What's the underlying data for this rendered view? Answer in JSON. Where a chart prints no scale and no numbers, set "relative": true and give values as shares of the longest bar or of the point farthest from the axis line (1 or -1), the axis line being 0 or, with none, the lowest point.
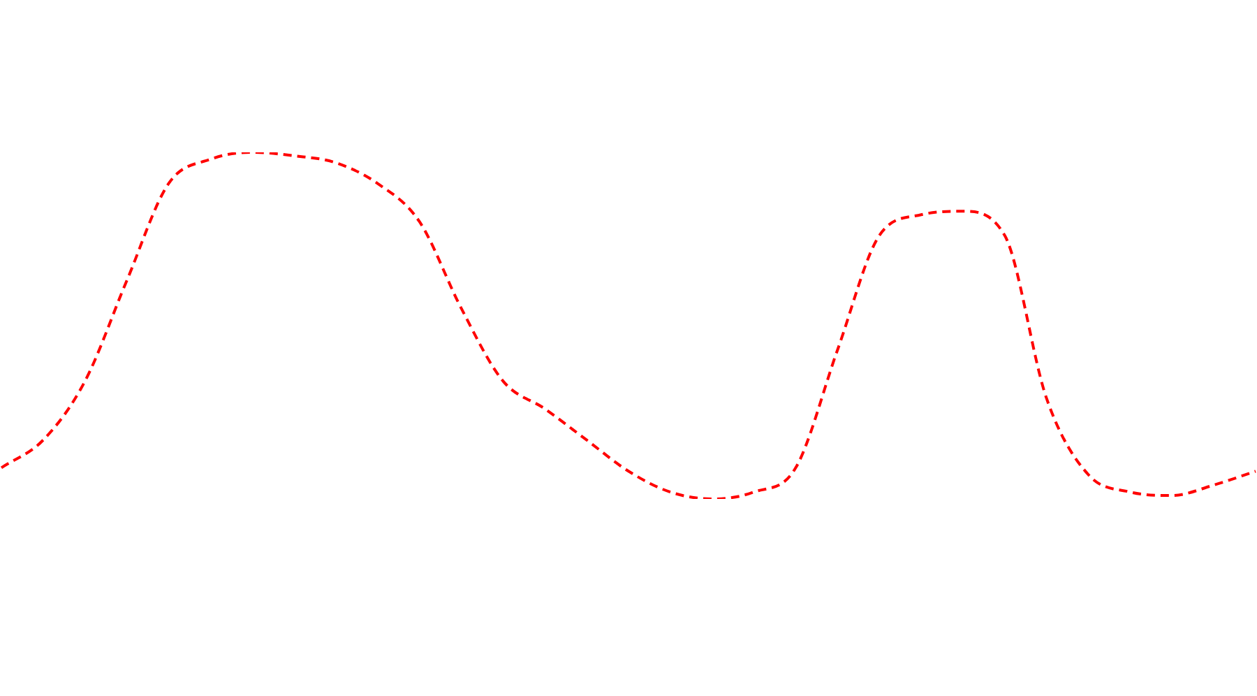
{
  "chart_data": {
    "type": "line",
    "relative": true,
    "line_style": "dashed",
    "marker": "none",
    "categories": [
      null,
      null,
      null,
      null,
      null,
      null,
      null,
      null,
      null,
      null,
      null,
      null,
      null,
      null,
      null,
      null,
      null,
      null,
      null,
      null,
      null,
      null,
      null,
      null,
      null,
      null,
      null,
      null,
      null,
      null,
      null
    ],
    "series": [
      {
        "color": "#ff0000",
        "values": [
          0.09,
          0.17,
          0.34,
          0.63,
          0.91,
          0.98,
          1,
          0.99,
          0.97,
          0.91,
          0.8,
          0.55,
          0.34,
          0.26,
          0.17,
          0.08,
          0.02,
          0,
          0.02,
          0.09,
          0.43,
          0.76,
          0.82,
          0.83,
          0.76,
          0.29,
          0.07,
          0.02,
          0.01,
          0.04,
          0.08
        ]
      }
    ]
  }
}
